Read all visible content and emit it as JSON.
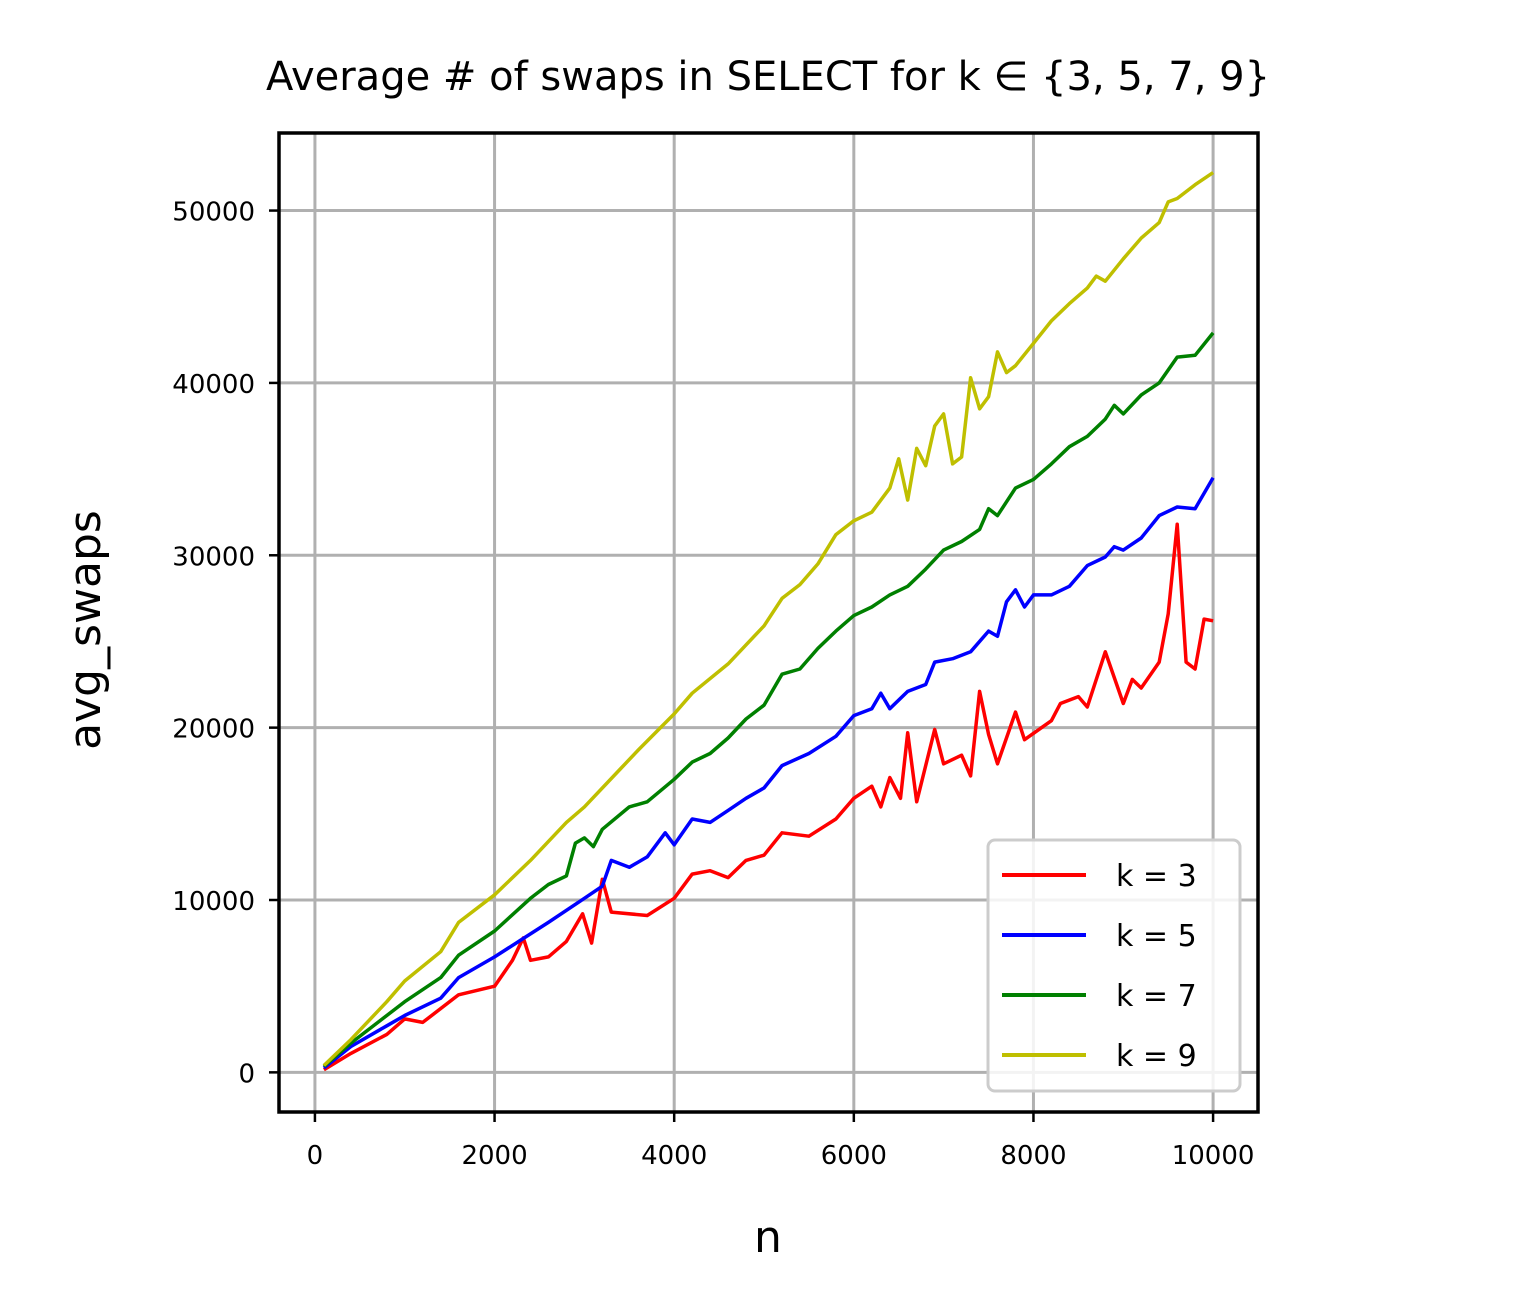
{
  "chart_data": {
    "type": "line",
    "title": "Average # of swaps in SELECT for k ∈ {3, 5, 7, 9}",
    "xlabel": "n",
    "ylabel": "avg_swaps",
    "xlim": [
      -400,
      10500
    ],
    "ylim": [
      -2300,
      54500
    ],
    "xticks": [
      0,
      2000,
      4000,
      6000,
      8000,
      10000
    ],
    "yticks": [
      0,
      10000,
      20000,
      30000,
      40000,
      50000
    ],
    "grid": true,
    "legend_position": "lower-right",
    "series": [
      {
        "name": "k = 3",
        "color": "#ff0000",
        "points": [
          [
            100,
            150
          ],
          [
            400,
            1100
          ],
          [
            800,
            2200
          ],
          [
            1000,
            3100
          ],
          [
            1200,
            2900
          ],
          [
            1600,
            4500
          ],
          [
            2000,
            5000
          ],
          [
            2200,
            6500
          ],
          [
            2320,
            7800
          ],
          [
            2400,
            6500
          ],
          [
            2600,
            6700
          ],
          [
            2800,
            7600
          ],
          [
            2980,
            9200
          ],
          [
            3080,
            7500
          ],
          [
            3200,
            11200
          ],
          [
            3300,
            9300
          ],
          [
            3700,
            9100
          ],
          [
            4000,
            10100
          ],
          [
            4200,
            11500
          ],
          [
            4400,
            11700
          ],
          [
            4600,
            11300
          ],
          [
            4800,
            12300
          ],
          [
            5000,
            12600
          ],
          [
            5200,
            13900
          ],
          [
            5500,
            13700
          ],
          [
            5800,
            14700
          ],
          [
            6000,
            15900
          ],
          [
            6200,
            16600
          ],
          [
            6300,
            15400
          ],
          [
            6400,
            17100
          ],
          [
            6520,
            15900
          ],
          [
            6600,
            19700
          ],
          [
            6700,
            15700
          ],
          [
            6900,
            19900
          ],
          [
            7000,
            17900
          ],
          [
            7200,
            18400
          ],
          [
            7300,
            17200
          ],
          [
            7400,
            22100
          ],
          [
            7500,
            19600
          ],
          [
            7600,
            17900
          ],
          [
            7800,
            20900
          ],
          [
            7900,
            19300
          ],
          [
            8200,
            20400
          ],
          [
            8300,
            21400
          ],
          [
            8500,
            21800
          ],
          [
            8600,
            21200
          ],
          [
            8800,
            24400
          ],
          [
            9000,
            21400
          ],
          [
            9100,
            22800
          ],
          [
            9200,
            22300
          ],
          [
            9400,
            23800
          ],
          [
            9500,
            26600
          ],
          [
            9600,
            31800
          ],
          [
            9700,
            23800
          ],
          [
            9800,
            23400
          ],
          [
            9900,
            26300
          ],
          [
            10000,
            26200
          ]
        ]
      },
      {
        "name": "k = 5",
        "color": "#0000ff",
        "points": [
          [
            100,
            250
          ],
          [
            400,
            1500
          ],
          [
            800,
            2700
          ],
          [
            1000,
            3300
          ],
          [
            1400,
            4300
          ],
          [
            1600,
            5500
          ],
          [
            2000,
            6700
          ],
          [
            2300,
            7700
          ],
          [
            2600,
            8700
          ],
          [
            3000,
            10100
          ],
          [
            3200,
            10800
          ],
          [
            3300,
            12300
          ],
          [
            3500,
            11900
          ],
          [
            3700,
            12500
          ],
          [
            3900,
            13900
          ],
          [
            4000,
            13200
          ],
          [
            4200,
            14700
          ],
          [
            4400,
            14500
          ],
          [
            4600,
            15200
          ],
          [
            4800,
            15900
          ],
          [
            5000,
            16500
          ],
          [
            5200,
            17800
          ],
          [
            5500,
            18500
          ],
          [
            5800,
            19500
          ],
          [
            6000,
            20700
          ],
          [
            6200,
            21100
          ],
          [
            6300,
            22000
          ],
          [
            6400,
            21100
          ],
          [
            6600,
            22100
          ],
          [
            6800,
            22500
          ],
          [
            6900,
            23800
          ],
          [
            7100,
            24000
          ],
          [
            7300,
            24400
          ],
          [
            7500,
            25600
          ],
          [
            7600,
            25300
          ],
          [
            7700,
            27300
          ],
          [
            7800,
            28000
          ],
          [
            7900,
            27000
          ],
          [
            8000,
            27700
          ],
          [
            8200,
            27700
          ],
          [
            8400,
            28200
          ],
          [
            8600,
            29400
          ],
          [
            8800,
            29900
          ],
          [
            8900,
            30500
          ],
          [
            9000,
            30300
          ],
          [
            9200,
            31000
          ],
          [
            9400,
            32300
          ],
          [
            9600,
            32800
          ],
          [
            9800,
            32700
          ],
          [
            10000,
            34500
          ]
        ]
      },
      {
        "name": "k = 7",
        "color": "#008000",
        "points": [
          [
            100,
            350
          ],
          [
            400,
            1700
          ],
          [
            800,
            3300
          ],
          [
            1000,
            4100
          ],
          [
            1400,
            5500
          ],
          [
            1600,
            6800
          ],
          [
            2000,
            8200
          ],
          [
            2400,
            10100
          ],
          [
            2600,
            10900
          ],
          [
            2800,
            11400
          ],
          [
            2900,
            13300
          ],
          [
            3000,
            13600
          ],
          [
            3100,
            13100
          ],
          [
            3200,
            14100
          ],
          [
            3500,
            15400
          ],
          [
            3700,
            15700
          ],
          [
            4000,
            17000
          ],
          [
            4200,
            18000
          ],
          [
            4400,
            18500
          ],
          [
            4600,
            19400
          ],
          [
            4800,
            20500
          ],
          [
            5000,
            21300
          ],
          [
            5200,
            23100
          ],
          [
            5400,
            23400
          ],
          [
            5600,
            24600
          ],
          [
            5800,
            25600
          ],
          [
            6000,
            26500
          ],
          [
            6200,
            27000
          ],
          [
            6400,
            27700
          ],
          [
            6600,
            28200
          ],
          [
            6800,
            29200
          ],
          [
            7000,
            30300
          ],
          [
            7200,
            30800
          ],
          [
            7400,
            31500
          ],
          [
            7500,
            32700
          ],
          [
            7600,
            32300
          ],
          [
            7800,
            33900
          ],
          [
            8000,
            34400
          ],
          [
            8200,
            35300
          ],
          [
            8400,
            36300
          ],
          [
            8600,
            36900
          ],
          [
            8800,
            37900
          ],
          [
            8900,
            38700
          ],
          [
            9000,
            38200
          ],
          [
            9200,
            39300
          ],
          [
            9400,
            40000
          ],
          [
            9600,
            41500
          ],
          [
            9800,
            41600
          ],
          [
            10000,
            42900
          ]
        ]
      },
      {
        "name": "k = 9",
        "color": "#bfbf00",
        "points": [
          [
            100,
            400
          ],
          [
            400,
            1900
          ],
          [
            800,
            4100
          ],
          [
            1000,
            5300
          ],
          [
            1400,
            7000
          ],
          [
            1600,
            8700
          ],
          [
            2000,
            10300
          ],
          [
            2400,
            12300
          ],
          [
            2800,
            14500
          ],
          [
            3000,
            15400
          ],
          [
            3400,
            17600
          ],
          [
            3600,
            18700
          ],
          [
            4000,
            20800
          ],
          [
            4200,
            22000
          ],
          [
            4600,
            23700
          ],
          [
            4800,
            24800
          ],
          [
            5000,
            25900
          ],
          [
            5200,
            27500
          ],
          [
            5400,
            28300
          ],
          [
            5600,
            29500
          ],
          [
            5800,
            31200
          ],
          [
            6000,
            32000
          ],
          [
            6200,
            32500
          ],
          [
            6400,
            33900
          ],
          [
            6500,
            35600
          ],
          [
            6600,
            33200
          ],
          [
            6700,
            36200
          ],
          [
            6800,
            35200
          ],
          [
            6900,
            37500
          ],
          [
            7000,
            38200
          ],
          [
            7100,
            35300
          ],
          [
            7200,
            35700
          ],
          [
            7300,
            40300
          ],
          [
            7400,
            38500
          ],
          [
            7500,
            39200
          ],
          [
            7600,
            41800
          ],
          [
            7700,
            40600
          ],
          [
            7800,
            41000
          ],
          [
            8000,
            42300
          ],
          [
            8200,
            43600
          ],
          [
            8400,
            44600
          ],
          [
            8600,
            45500
          ],
          [
            8700,
            46200
          ],
          [
            8800,
            45900
          ],
          [
            9000,
            47200
          ],
          [
            9200,
            48400
          ],
          [
            9400,
            49300
          ],
          [
            9500,
            50500
          ],
          [
            9600,
            50700
          ],
          [
            9800,
            51500
          ],
          [
            10000,
            52200
          ]
        ]
      }
    ]
  }
}
